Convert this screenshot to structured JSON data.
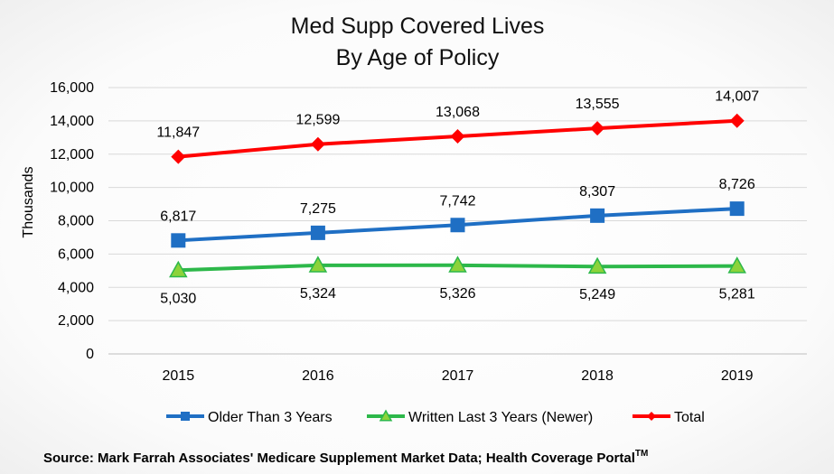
{
  "chart_data": {
    "type": "line",
    "title": "Med Supp Covered Lives",
    "subtitle": "By Age of Policy",
    "ylabel": "Thousands",
    "xlabel": "",
    "categories": [
      "2015",
      "2016",
      "2017",
      "2018",
      "2019"
    ],
    "ylim": [
      0,
      16000
    ],
    "yticks": [
      0,
      2000,
      4000,
      6000,
      8000,
      10000,
      12000,
      14000,
      16000
    ],
    "ytick_labels": [
      "0",
      "2,000",
      "4,000",
      "6,000",
      "8,000",
      "10,000",
      "12,000",
      "14,000",
      "16,000"
    ],
    "grid": true,
    "legend_position": "bottom",
    "series": [
      {
        "name": "Older Than 3 Years",
        "color": "#1f6fc4",
        "marker": "square",
        "label_position": "above",
        "values": [
          6817,
          7275,
          7742,
          8307,
          8726
        ],
        "labels": [
          "6,817",
          "7,275",
          "7,742",
          "8,307",
          "8,726"
        ]
      },
      {
        "name": "Written Last 3 Years (Newer)",
        "color": "#2db84a",
        "marker_color": "#8cd33a",
        "marker": "triangle",
        "label_position": "below",
        "values": [
          5030,
          5324,
          5326,
          5249,
          5281
        ],
        "labels": [
          "5,030",
          "5,324",
          "5,326",
          "5,249",
          "5,281"
        ]
      },
      {
        "name": "Total",
        "color": "#ff0000",
        "marker": "diamond",
        "label_position": "above",
        "values": [
          11847,
          12599,
          13068,
          13555,
          14007
        ],
        "labels": [
          "11,847",
          "12,599",
          "13,068",
          "13,555",
          "14,007"
        ]
      }
    ],
    "source_text": "Source:  Mark Farrah Associates' Medicare Supplement Market Data; Health Coverage Portal",
    "source_superscript": "TM"
  }
}
